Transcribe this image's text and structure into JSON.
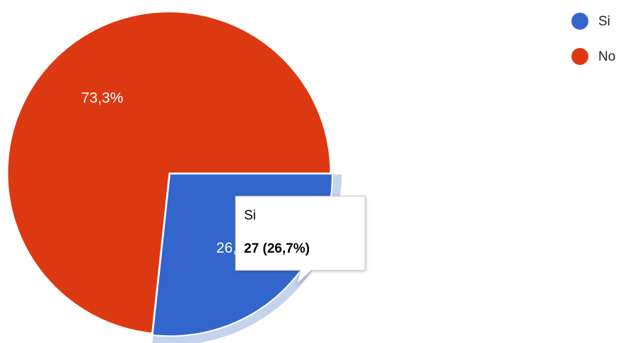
{
  "chart_data": {
    "type": "pie",
    "categories": [
      "Si",
      "No"
    ],
    "values": [
      26.7,
      73.3
    ],
    "value_labels": [
      "26,7%",
      "73,3%"
    ],
    "colors": [
      "#3366cc",
      "#dc3912"
    ],
    "tooltip": {
      "title": "Si",
      "text": "27 (26,7%)"
    }
  }
}
